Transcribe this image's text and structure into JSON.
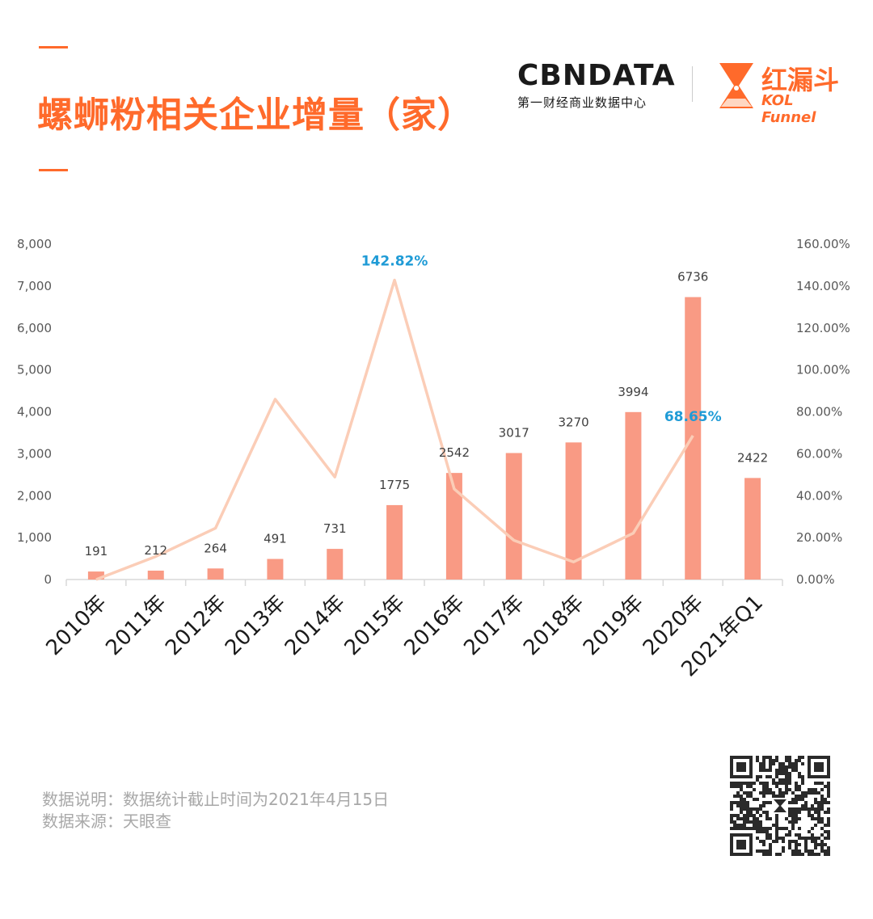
{
  "header": {
    "title": "螺蛳粉相关企业增量（家）"
  },
  "logos": {
    "cbn_word": "CBNDATA",
    "cbn_sub": "第一财经商业数据中心",
    "kol_cn": "红漏斗",
    "kol_en": "KOL Funnel"
  },
  "notes": {
    "line1": "数据说明：数据统计截止时间为2021年4月15日",
    "line2": "数据来源：天眼查"
  },
  "colors": {
    "accent": "#ff6a2b",
    "bar": "#f99a84",
    "line": "#fbcdb7",
    "highlight_label": "#1f9bd6"
  },
  "chart_data": {
    "type": "bar",
    "categories": [
      "2010年",
      "2011年",
      "2012年",
      "2013年",
      "2014年",
      "2015年",
      "2016年",
      "2017年",
      "2018年",
      "2019年",
      "2020年",
      "2021年Q1"
    ],
    "series": [
      {
        "type": "bar",
        "axis": "left",
        "values": [
          191,
          212,
          264,
          491,
          731,
          1775,
          2542,
          3017,
          3270,
          3994,
          6736,
          2422
        ]
      },
      {
        "type": "line",
        "axis": "right",
        "values": [
          0,
          11,
          24.5,
          86,
          48.9,
          142.82,
          43.2,
          18.7,
          8.4,
          22.1,
          68.65,
          null
        ],
        "labeled_points": [
          {
            "index": 5,
            "label": "142.82%"
          },
          {
            "index": 10,
            "label": "68.65%"
          }
        ]
      }
    ],
    "y_left": {
      "min": 0,
      "max": 8000,
      "step": 1000,
      "tick_labels": [
        "0",
        "1,000",
        "2,000",
        "3,000",
        "4,000",
        "5,000",
        "6,000",
        "7,000",
        "8,000"
      ]
    },
    "y_right": {
      "min": 0,
      "max": 160,
      "step": 20,
      "tick_labels": [
        "0.00%",
        "20.00%",
        "40.00%",
        "60.00%",
        "80.00%",
        "100.00%",
        "120.00%",
        "140.00%",
        "160.00%"
      ]
    },
    "grid": false,
    "legend": "none"
  }
}
